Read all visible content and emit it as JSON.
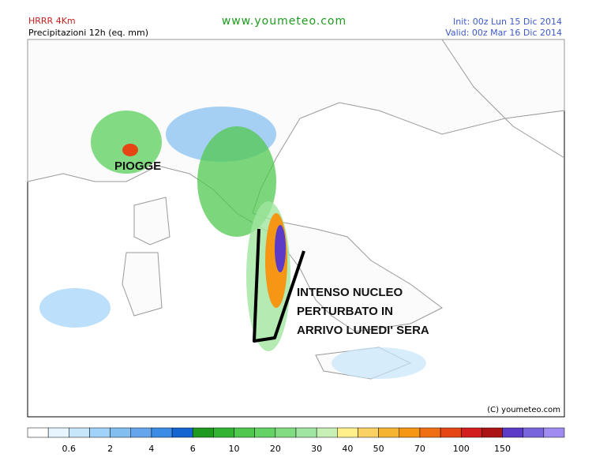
{
  "header": {
    "model": "HRRR 4Km",
    "field": "Precipitazioni 12h (eq. mm)",
    "site": "www.youmeteo.com",
    "init": "Init: 00z Lun  15 Dic 2014",
    "valid": "Valid: 00z Mar  16 Dic 2014"
  },
  "annotations": {
    "rain": "PIOGGE",
    "core": [
      "INTENSO NUCLEO",
      "PERTURBATO IN",
      "ARRIVO LUNEDI' SERA"
    ]
  },
  "copyright": "(C) youmeteo.com",
  "legend": {
    "colors": [
      "#ffffff",
      "#e6f5ff",
      "#c8e6fa",
      "#a0d2fa",
      "#82bef0",
      "#64a5eb",
      "#3c8ce6",
      "#1464d2",
      "#1e9b1e",
      "#32b432",
      "#50c850",
      "#64d264",
      "#82dc82",
      "#a0e6a0",
      "#c8f0b4",
      "#fff08c",
      "#fad264",
      "#f5b432",
      "#f59614",
      "#f06e14",
      "#e64614",
      "#d21e1e",
      "#aa1414",
      "#5a3cc8",
      "#7864dc",
      "#a08cf0"
    ],
    "labels": [
      0.6,
      2,
      4,
      6,
      10,
      20,
      30,
      40,
      50,
      70,
      100,
      150
    ]
  }
}
